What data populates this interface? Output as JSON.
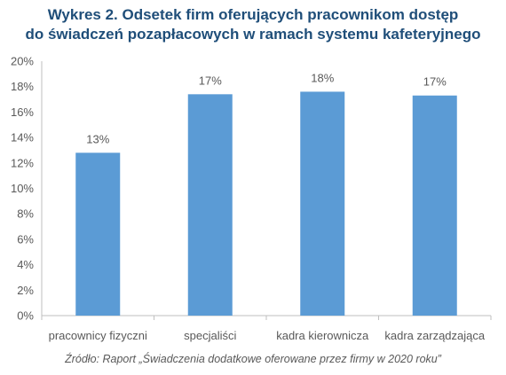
{
  "title_line1": "Wykres 2. Odsetek firm oferujących pracownikom dostęp",
  "title_line2": "do świadczeń pozapłacowych w ramach systemu kafeteryjnego",
  "source": "Źródło: Raport „Świadczenia dodatkowe oferowane przez firmy w 2020 roku”",
  "bar_color": "#5b9bd5",
  "chart_data": {
    "type": "bar",
    "title": "Wykres 2. Odsetek firm oferujących pracownikom dostęp do świadczeń pozapłacowych w ramach systemu kafeteryjnego",
    "categories": [
      "pracownicy fizyczni",
      "specjaliści",
      "kadra kierownicza",
      "kadra zarządzająca"
    ],
    "values": [
      12.8,
      17.4,
      17.6,
      17.3
    ],
    "data_labels": [
      "13%",
      "17%",
      "18%",
      "17%"
    ],
    "y_ticks": [
      "0%",
      "2%",
      "4%",
      "6%",
      "8%",
      "10%",
      "12%",
      "14%",
      "16%",
      "18%",
      "20%"
    ],
    "ylim": [
      0,
      20
    ],
    "xlabel": "",
    "ylabel": "",
    "grid": false,
    "legend": "none"
  }
}
